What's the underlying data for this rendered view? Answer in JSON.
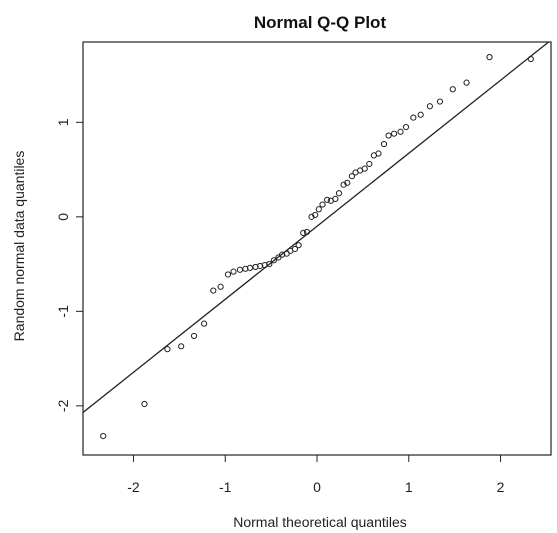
{
  "chart_data": {
    "type": "scatter",
    "title": "Normal Q-Q Plot",
    "xlabel": "Normal theoretical quantiles",
    "ylabel": "Random normal data quantiles",
    "xlim": [
      -2.55,
      2.55
    ],
    "ylim": [
      -2.52,
      1.85
    ],
    "x_ticks": [
      -2,
      -1,
      0,
      1,
      2
    ],
    "x_tick_labels": [
      "-2",
      "-1",
      "0",
      "1",
      "2"
    ],
    "y_ticks": [
      -2,
      -1,
      0,
      1
    ],
    "y_tick_labels": [
      "-2",
      "-1",
      "0",
      "1"
    ],
    "grid": false,
    "legend": "none",
    "series": [
      {
        "marker": "open-circle",
        "x": [
          -2.33,
          -1.88,
          -1.63,
          -1.48,
          -1.34,
          -1.23,
          -1.13,
          -1.05,
          -0.97,
          -0.91,
          -0.84,
          -0.78,
          -0.73,
          -0.67,
          -0.62,
          -0.57,
          -0.52,
          -0.47,
          -0.42,
          -0.38,
          -0.33,
          -0.29,
          -0.24,
          -0.2,
          -0.15,
          -0.11,
          -0.06,
          -0.02,
          0.02,
          0.06,
          0.11,
          0.15,
          0.2,
          0.24,
          0.29,
          0.33,
          0.38,
          0.42,
          0.47,
          0.52,
          0.57,
          0.62,
          0.67,
          0.73,
          0.78,
          0.84,
          0.91,
          0.97,
          1.05,
          1.13,
          1.23,
          1.34,
          1.48,
          1.63,
          1.88,
          2.33
        ],
        "y": [
          -2.32,
          -1.98,
          -1.4,
          -1.37,
          -1.26,
          -1.13,
          -0.78,
          -0.74,
          -0.61,
          -0.58,
          -0.56,
          -0.55,
          -0.54,
          -0.53,
          -0.52,
          -0.51,
          -0.5,
          -0.46,
          -0.43,
          -0.4,
          -0.39,
          -0.36,
          -0.34,
          -0.3,
          -0.17,
          -0.16,
          0.0,
          0.02,
          0.08,
          0.13,
          0.18,
          0.17,
          0.19,
          0.25,
          0.34,
          0.36,
          0.43,
          0.47,
          0.49,
          0.51,
          0.56,
          0.65,
          0.67,
          0.77,
          0.86,
          0.88,
          0.9,
          0.95,
          1.05,
          1.08,
          1.17,
          1.22,
          1.35,
          1.42,
          1.69,
          1.67
        ]
      }
    ],
    "reference_line": {
      "x": [
        -2.55,
        2.55
      ],
      "y": [
        -2.07,
        1.87
      ]
    },
    "colors": {
      "points": "#222222",
      "line": "#222222",
      "frame": "#222222",
      "background": "#ffffff"
    }
  }
}
